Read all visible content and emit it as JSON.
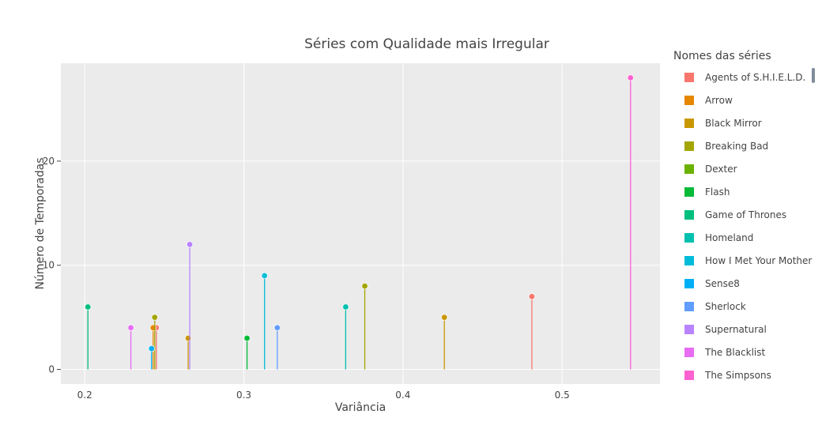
{
  "chart_data": {
    "type": "scatter",
    "mode": "lollipop",
    "title": "Séries com Qualidade mais Irregular",
    "xlabel": "Variância",
    "ylabel": "Número de Temporadas",
    "xlim": [
      0.185,
      0.5615
    ],
    "ylim": [
      -1.4,
      29.4
    ],
    "xticks": [
      0.2,
      0.3,
      0.4,
      0.5
    ],
    "xtick_labels": [
      "0.2",
      "0.3",
      "0.4",
      "0.5"
    ],
    "yticks": [
      0,
      10,
      20
    ],
    "ytick_labels": [
      "0",
      "10",
      "20"
    ],
    "grid": true,
    "legend_title": "Nomes das séries",
    "legend_position": "right",
    "series": [
      {
        "name": "Agents of S.H.I.E.L.D.",
        "color": "#f8766d",
        "points": [
          {
            "x": 0.245,
            "y": 4
          },
          {
            "x": 0.481,
            "y": 7
          }
        ]
      },
      {
        "name": "Arrow",
        "color": "#e58700",
        "points": [
          {
            "x": 0.243,
            "y": 4
          }
        ]
      },
      {
        "name": "Black Mirror",
        "color": "#c99800",
        "points": [
          {
            "x": 0.265,
            "y": 3
          },
          {
            "x": 0.426,
            "y": 5
          }
        ]
      },
      {
        "name": "Breaking Bad",
        "color": "#a3a500",
        "points": [
          {
            "x": 0.244,
            "y": 5
          },
          {
            "x": 0.376,
            "y": 8
          }
        ]
      },
      {
        "name": "Dexter",
        "color": "#6bb100",
        "points": []
      },
      {
        "name": "Flash",
        "color": "#00ba38",
        "points": [
          {
            "x": 0.302,
            "y": 3
          }
        ]
      },
      {
        "name": "Game of Thrones",
        "color": "#00bf7d",
        "points": [
          {
            "x": 0.202,
            "y": 6
          }
        ]
      },
      {
        "name": "Homeland",
        "color": "#00c0af",
        "points": [
          {
            "x": 0.364,
            "y": 6
          }
        ]
      },
      {
        "name": "How I Met Your Mother",
        "color": "#00bcd8",
        "points": [
          {
            "x": 0.313,
            "y": 9
          }
        ]
      },
      {
        "name": "Sense8",
        "color": "#00b0f6",
        "points": [
          {
            "x": 0.242,
            "y": 2
          }
        ]
      },
      {
        "name": "Sherlock",
        "color": "#619cff",
        "points": [
          {
            "x": 0.321,
            "y": 4
          }
        ]
      },
      {
        "name": "Supernatural",
        "color": "#b983ff",
        "points": [
          {
            "x": 0.266,
            "y": 12
          }
        ]
      },
      {
        "name": "The Blacklist",
        "color": "#e76bf3",
        "points": [
          {
            "x": 0.229,
            "y": 4
          }
        ]
      },
      {
        "name": "The Simpsons",
        "color": "#fd61d1",
        "points": [
          {
            "x": 0.543,
            "y": 28
          }
        ]
      }
    ]
  }
}
